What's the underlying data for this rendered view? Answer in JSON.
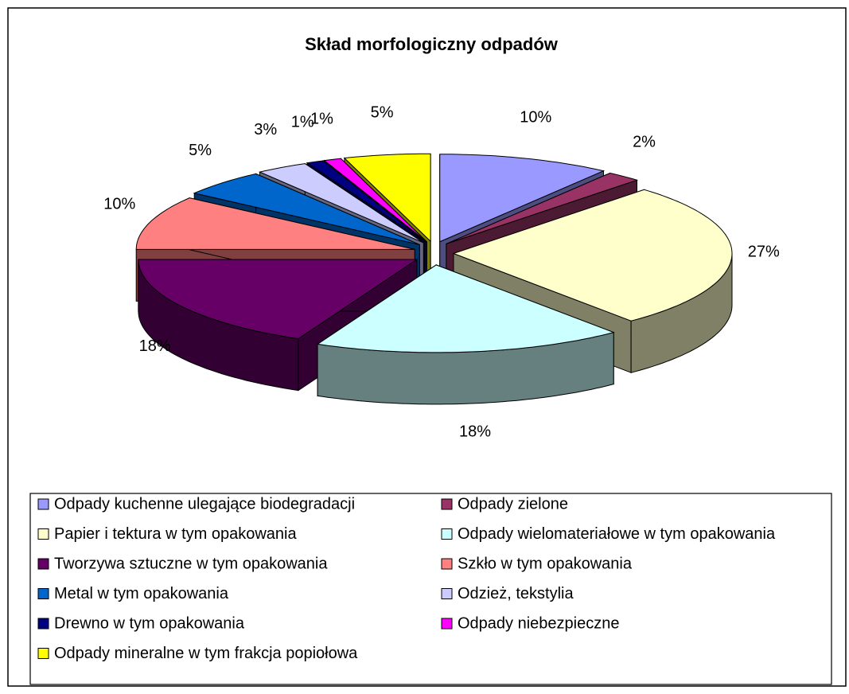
{
  "chart_data": {
    "type": "pie3d",
    "title": "Skład morfologiczny odpadów",
    "categories": [
      "Odpady kuchenne ulegające biodegradacji",
      "Odpady zielone",
      "Papier i tektura w tym opakowania",
      "Odpady wielomateriałowe w tym opakowania",
      "Tworzywa sztuczne w tym opakowania",
      "Szkło w tym opakowania",
      "Metal w tym opakowania",
      "Odzież, tekstylia",
      "Drewno w tym opakowania",
      "Odpady niebezpieczne",
      "Odpady mineralne w tym frakcja popiołowa"
    ],
    "values": [
      10,
      2,
      27,
      18,
      18,
      10,
      5,
      3,
      1,
      1,
      5
    ],
    "value_labels": [
      "10%",
      "2%",
      "27%",
      "18%",
      "18%",
      "10%",
      "5%",
      "3%",
      "1%",
      "1%",
      "5%"
    ],
    "colors": [
      "#9999ff",
      "#993366",
      "#ffffcc",
      "#ccffff",
      "#660066",
      "#ff8080",
      "#0066cc",
      "#ccccff",
      "#000080",
      "#ff00ff",
      "#ffff00"
    ],
    "legend": "bottom"
  }
}
